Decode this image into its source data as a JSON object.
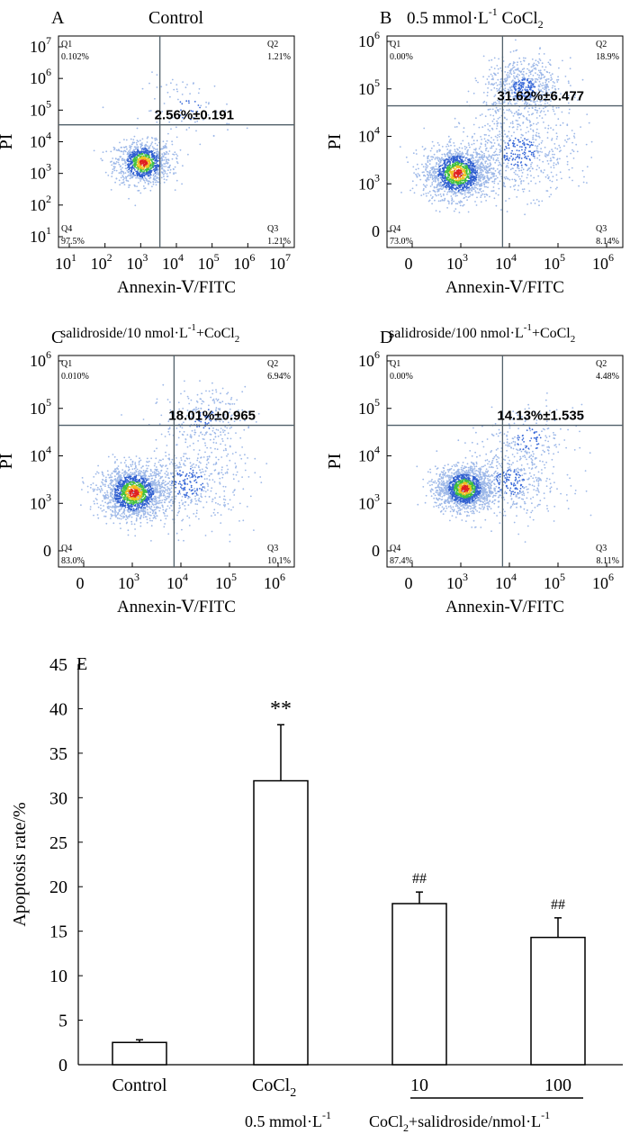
{
  "panels": [
    {
      "letter": "A",
      "title": "Control",
      "title_sup": "",
      "title_sub": "",
      "x_ticks": [
        {
          "b": "10",
          "e": "1"
        },
        {
          "b": "10",
          "e": "2"
        },
        {
          "b": "10",
          "e": "3"
        },
        {
          "b": "10",
          "e": "4"
        },
        {
          "b": "10",
          "e": "5"
        },
        {
          "b": "10",
          "e": "6"
        },
        {
          "b": "10",
          "e": "7"
        }
      ],
      "y_ticks": [
        {
          "b": "10",
          "e": "1"
        },
        {
          "b": "10",
          "e": "2"
        },
        {
          "b": "10",
          "e": "3"
        },
        {
          "b": "10",
          "e": "4"
        },
        {
          "b": "10",
          "e": "5"
        },
        {
          "b": "10",
          "e": "6"
        },
        {
          "b": "10",
          "e": "7"
        }
      ],
      "x_label": "Annexin-Ⅴ/FITC",
      "y_label": "PI",
      "quadrants": {
        "Q1": {
          "name": "Q1",
          "pct": "0.102%"
        },
        "Q2": {
          "name": "Q2",
          "pct": "1.21%"
        },
        "Q3": {
          "name": "Q3",
          "pct": "1.21%"
        },
        "Q4": {
          "name": "Q4",
          "pct": "97.5%"
        }
      },
      "total_label": "2.56%±0.191",
      "gate_x_frac": 0.43,
      "gate_y_frac": 0.58,
      "clusters": [
        {
          "x": 0.36,
          "y": 0.4,
          "n": 1000,
          "s": 0.05
        },
        {
          "x": 0.55,
          "y": 0.65,
          "n": 90,
          "s": 0.08
        }
      ]
    },
    {
      "letter": "B",
      "title": "0.5 mmol·L",
      "title_sup": "-1",
      "title_sub": "2",
      "title_mid": " CoCl",
      "x_ticks": [
        {
          "b": "0",
          "e": ""
        },
        {
          "b": "10",
          "e": "3"
        },
        {
          "b": "10",
          "e": "4"
        },
        {
          "b": "10",
          "e": "5"
        },
        {
          "b": "10",
          "e": "6"
        }
      ],
      "y_ticks": [
        {
          "b": "0",
          "e": ""
        },
        {
          "b": "10",
          "e": "3"
        },
        {
          "b": "10",
          "e": "4"
        },
        {
          "b": "10",
          "e": "5"
        },
        {
          "b": "10",
          "e": "6"
        }
      ],
      "x_label": "Annexin-Ⅴ/FITC",
      "y_label": "PI",
      "quadrants": {
        "Q1": {
          "name": "Q1",
          "pct": "0.00%"
        },
        "Q2": {
          "name": "Q2",
          "pct": "18.9%"
        },
        "Q3": {
          "name": "Q3",
          "pct": "8.14%"
        },
        "Q4": {
          "name": "Q4",
          "pct": "73.0%"
        }
      },
      "total_label": "31.62%±6.477",
      "gate_x_frac": 0.49,
      "gate_y_frac": 0.67,
      "clusters": [
        {
          "x": 0.3,
          "y": 0.35,
          "n": 1500,
          "s": 0.06
        },
        {
          "x": 0.58,
          "y": 0.75,
          "n": 700,
          "s": 0.07
        },
        {
          "x": 0.56,
          "y": 0.45,
          "n": 600,
          "s": 0.1
        }
      ]
    },
    {
      "letter": "C",
      "title": "salidroside/10 nmol·L",
      "title_sup": "-1",
      "title_sub": "2",
      "title_mid": "+CoCl",
      "x_ticks": [
        {
          "b": "0",
          "e": ""
        },
        {
          "b": "10",
          "e": "3"
        },
        {
          "b": "10",
          "e": "4"
        },
        {
          "b": "10",
          "e": "5"
        },
        {
          "b": "10",
          "e": "6"
        }
      ],
      "y_ticks": [
        {
          "b": "0",
          "e": ""
        },
        {
          "b": "10",
          "e": "3"
        },
        {
          "b": "10",
          "e": "4"
        },
        {
          "b": "10",
          "e": "5"
        },
        {
          "b": "10",
          "e": "6"
        }
      ],
      "x_label": "Annexin-Ⅴ/FITC",
      "y_label": "PI",
      "quadrants": {
        "Q1": {
          "name": "Q1",
          "pct": "0.010%"
        },
        "Q2": {
          "name": "Q2",
          "pct": "6.94%"
        },
        "Q3": {
          "name": "Q3",
          "pct": "10.1%"
        },
        "Q4": {
          "name": "Q4",
          "pct": "83.0%"
        }
      },
      "total_label": "18.01%±0.965",
      "gate_x_frac": 0.49,
      "gate_y_frac": 0.67,
      "clusters": [
        {
          "x": 0.32,
          "y": 0.35,
          "n": 1600,
          "s": 0.06
        },
        {
          "x": 0.55,
          "y": 0.4,
          "n": 500,
          "s": 0.1
        },
        {
          "x": 0.62,
          "y": 0.7,
          "n": 250,
          "s": 0.07
        }
      ]
    },
    {
      "letter": "D",
      "title": "salidroside/100 nmol·L",
      "title_sup": "-1",
      "title_sub": "2",
      "title_mid": "+CoCl",
      "x_ticks": [
        {
          "b": "0",
          "e": ""
        },
        {
          "b": "10",
          "e": "3"
        },
        {
          "b": "10",
          "e": "4"
        },
        {
          "b": "10",
          "e": "5"
        },
        {
          "b": "10",
          "e": "6"
        }
      ],
      "y_ticks": [
        {
          "b": "0",
          "e": ""
        },
        {
          "b": "10",
          "e": "3"
        },
        {
          "b": "10",
          "e": "4"
        },
        {
          "b": "10",
          "e": "5"
        },
        {
          "b": "10",
          "e": "6"
        }
      ],
      "x_label": "Annexin-Ⅴ/FITC",
      "y_label": "PI",
      "quadrants": {
        "Q1": {
          "name": "Q1",
          "pct": "0.00%"
        },
        "Q2": {
          "name": "Q2",
          "pct": "4.48%"
        },
        "Q3": {
          "name": "Q3",
          "pct": "8.11%"
        },
        "Q4": {
          "name": "Q4",
          "pct": "87.4%"
        }
      },
      "total_label": "14.13%±1.535",
      "gate_x_frac": 0.49,
      "gate_y_frac": 0.67,
      "clusters": [
        {
          "x": 0.33,
          "y": 0.37,
          "n": 1600,
          "s": 0.05
        },
        {
          "x": 0.52,
          "y": 0.4,
          "n": 450,
          "s": 0.09
        },
        {
          "x": 0.6,
          "y": 0.6,
          "n": 200,
          "s": 0.08
        }
      ]
    }
  ],
  "chart_data": {
    "type": "bar",
    "panel_letter": "E",
    "categories": [
      "Control",
      "CoCl2 0.5 mmol·L-1",
      "CoCl2+salidroside 10 nmol·L-1",
      "CoCl2+salidroside 100 nmol·L-1"
    ],
    "values": [
      2.5,
      31.9,
      18.1,
      14.3
    ],
    "errors": [
      0.3,
      6.3,
      1.3,
      2.2
    ],
    "annotations": [
      "",
      "**",
      "##",
      "##"
    ],
    "ylabel": "Apoptosis rate/%",
    "ylim": [
      0,
      45
    ],
    "yticks": [
      "0",
      "5",
      "10",
      "15",
      "20",
      "25",
      "30",
      "35",
      "40",
      "45"
    ],
    "xlabels": {
      "control": "Control",
      "cocl2_a": "CoCl",
      "cocl2_sub": "2",
      "cocl2_dose_a": "0.5 mmol·L",
      "cocl2_dose_sup": "-1",
      "dose10": "10",
      "dose100": "100",
      "group_a": "CoCl",
      "group_sub": "2",
      "group_b": "+salidroside/nmol·L",
      "group_sup": "-1"
    }
  }
}
